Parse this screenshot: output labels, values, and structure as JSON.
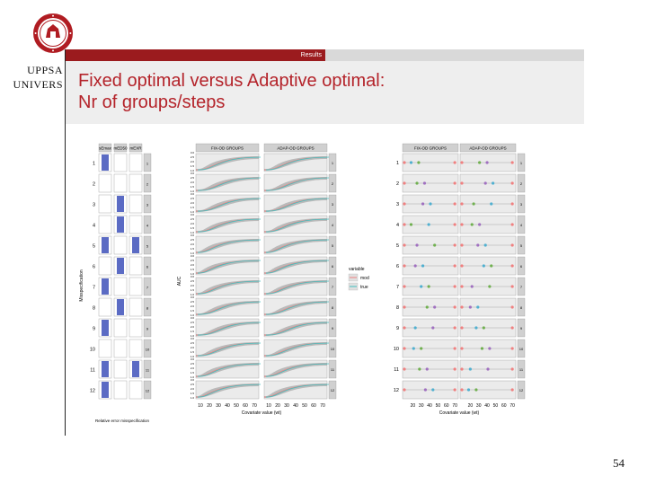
{
  "header": {
    "university_name_lines": [
      "UPPSA",
      "UNIVERS"
    ],
    "section_label": "Results",
    "title_line1": "Fixed optimal versus Adaptive optimal:",
    "title_line2": "Nr of groups/steps",
    "page_number": "54"
  },
  "colors": {
    "brand_red": "#9b1b1e",
    "title_red": "#b4232a",
    "bar_blue": "#5b6bc4",
    "mod_red": "#f08080",
    "true_cyan": "#40c0c0",
    "ci_grey": "#999999"
  },
  "chart_data": [
    {
      "type": "bar",
      "panels": [
        "sEmax",
        "mED50",
        "mEXR"
      ],
      "categories": [
        "1",
        "2",
        "3",
        "4",
        "5",
        "6",
        "7",
        "8",
        "9",
        "10",
        "11",
        "12"
      ],
      "ylabel": "Misspecification",
      "xlabel": "Relative error misspecification",
      "series": [
        {
          "name": "sEmax",
          "values": [
            1,
            0,
            0,
            0,
            1,
            0,
            1,
            0,
            1,
            0,
            1,
            1
          ]
        },
        {
          "name": "mED50",
          "values": [
            0,
            0,
            1,
            1,
            0,
            1,
            0,
            1,
            0,
            0,
            0,
            0
          ]
        },
        {
          "name": "mEXR",
          "values": [
            0,
            0,
            0,
            0,
            1,
            0,
            0,
            0,
            0,
            0,
            1,
            0
          ]
        }
      ]
    },
    {
      "type": "area",
      "panels": [
        "FIX-OD GROUPS",
        "ADAP-OD GROUPS"
      ],
      "rows": [
        "1",
        "2",
        "3",
        "4",
        "5",
        "6",
        "7",
        "8",
        "9",
        "10",
        "11",
        "12"
      ],
      "xlabel": "Covariate value (wt)",
      "ylabel": "AUC",
      "x_ticks": [
        "10",
        "20",
        "30",
        "40",
        "50",
        "60",
        "70"
      ],
      "y_ticks": [
        "1.0",
        "1.5",
        "2.0",
        "2.5",
        "3.0"
      ],
      "legend_title": "variable",
      "legend": [
        "mod",
        "true"
      ]
    },
    {
      "type": "scatter",
      "panels": [
        "FIX-OD GROUPS",
        "ADAP-OD GROUPS"
      ],
      "categories": [
        "1",
        "2",
        "3",
        "4",
        "5",
        "6",
        "7",
        "8",
        "9",
        "10",
        "11",
        "12"
      ],
      "xlabel": "Covariate value (wt)",
      "x_ticks": [
        "20",
        "30",
        "40",
        "50",
        "60",
        "70"
      ],
      "xlim": [
        10,
        72
      ]
    }
  ]
}
